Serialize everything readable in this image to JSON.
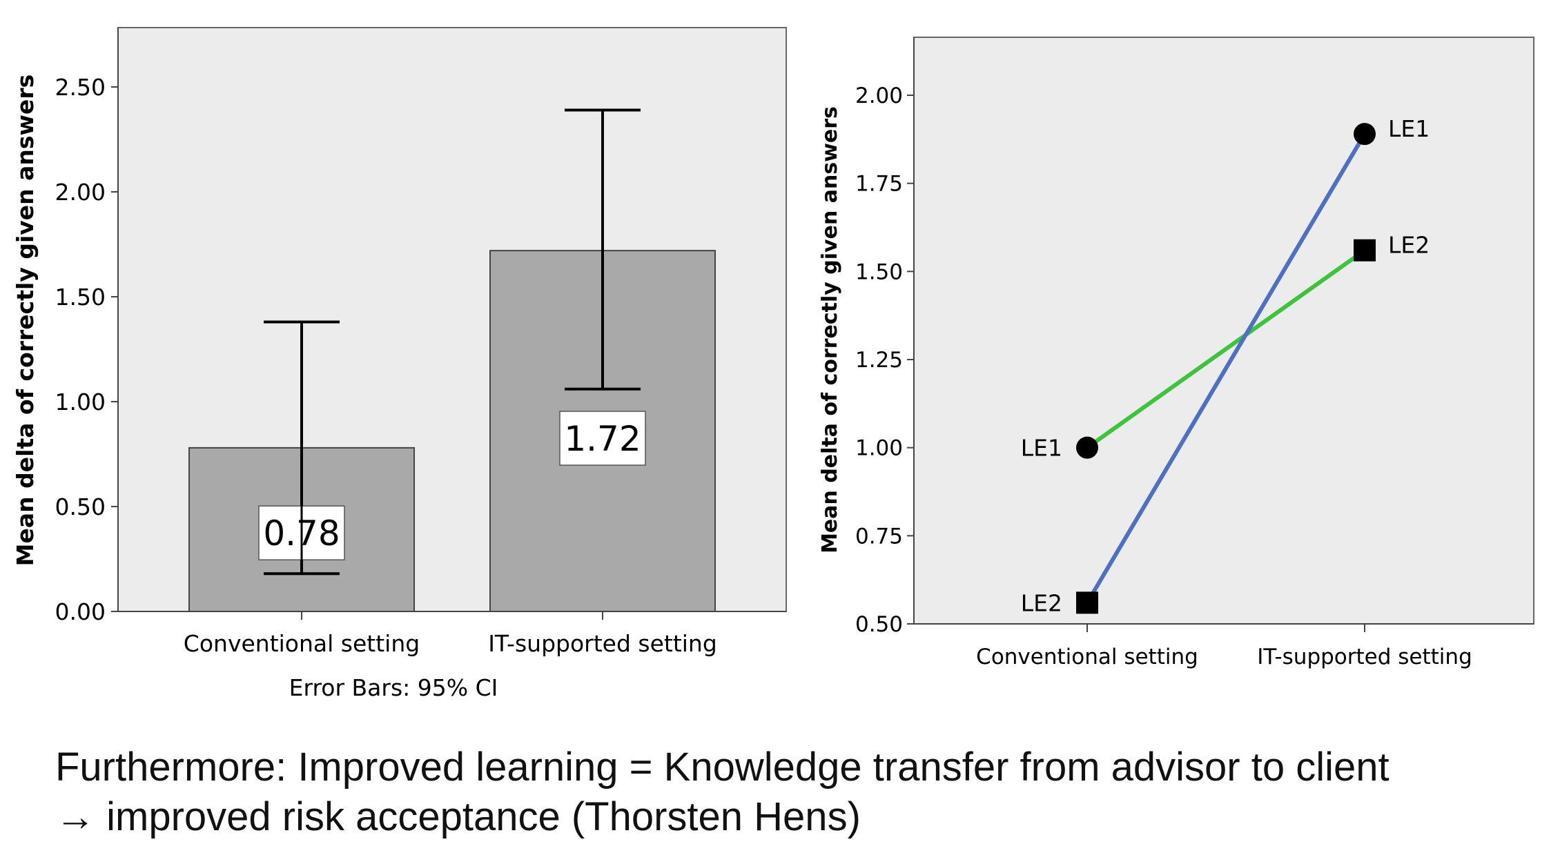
{
  "caption": {
    "line1": "Furthermore: Improved learning = Knowledge transfer from advisor to client",
    "line2": "→ improved risk acceptance (Thorsten Hens)"
  },
  "chart_data": [
    {
      "type": "bar",
      "categories": [
        "Conventional setting",
        "IT-supported setting"
      ],
      "values": [
        0.78,
        1.72
      ],
      "value_labels": [
        "0.78",
        "1.72"
      ],
      "error_bars": {
        "low": [
          0.18,
          1.06
        ],
        "high": [
          1.38,
          2.39
        ]
      },
      "ylabel": "Mean delta of correctly given answers",
      "xlabel": "",
      "footnote": "Error Bars: 95% CI",
      "ylim": [
        0,
        2.5
      ],
      "yticks": [
        0,
        0.5,
        1,
        1.5,
        2,
        2.5
      ],
      "ytick_labels": [
        "0.00",
        "0.50",
        "1.00",
        "1.50",
        "2.00",
        "2.50"
      ],
      "plot_background": "#ececec",
      "bar_color": "#a9a9a9",
      "grid": false
    },
    {
      "type": "line",
      "categories": [
        "Conventional setting",
        "IT-supported setting"
      ],
      "ylabel": "Mean delta of correctly given answers",
      "xlabel": "",
      "ylim": [
        0.5,
        2.0
      ],
      "yticks": [
        0.5,
        0.75,
        1.0,
        1.25,
        1.5,
        1.75,
        2.0
      ],
      "ytick_labels": [
        "0.50",
        "0.75",
        "1.00",
        "1.25",
        "1.50",
        "1.75",
        "2.00"
      ],
      "plot_background": "#ececec",
      "grid": false,
      "series": [
        {
          "name": "LE1",
          "values": [
            1.0,
            1.89
          ],
          "marker": "circle",
          "color": "#3dc43d"
        },
        {
          "name": "LE2",
          "values": [
            0.56,
            1.56
          ],
          "marker": "square",
          "color": "#4f6fc4"
        }
      ],
      "line_segments": [
        {
          "from": [
            0,
            1.0
          ],
          "to": [
            1,
            1.56
          ],
          "color": "#3dc43d"
        },
        {
          "from": [
            0,
            0.56
          ],
          "to": [
            1,
            1.89
          ],
          "color": "#4f6fc4"
        }
      ]
    }
  ]
}
